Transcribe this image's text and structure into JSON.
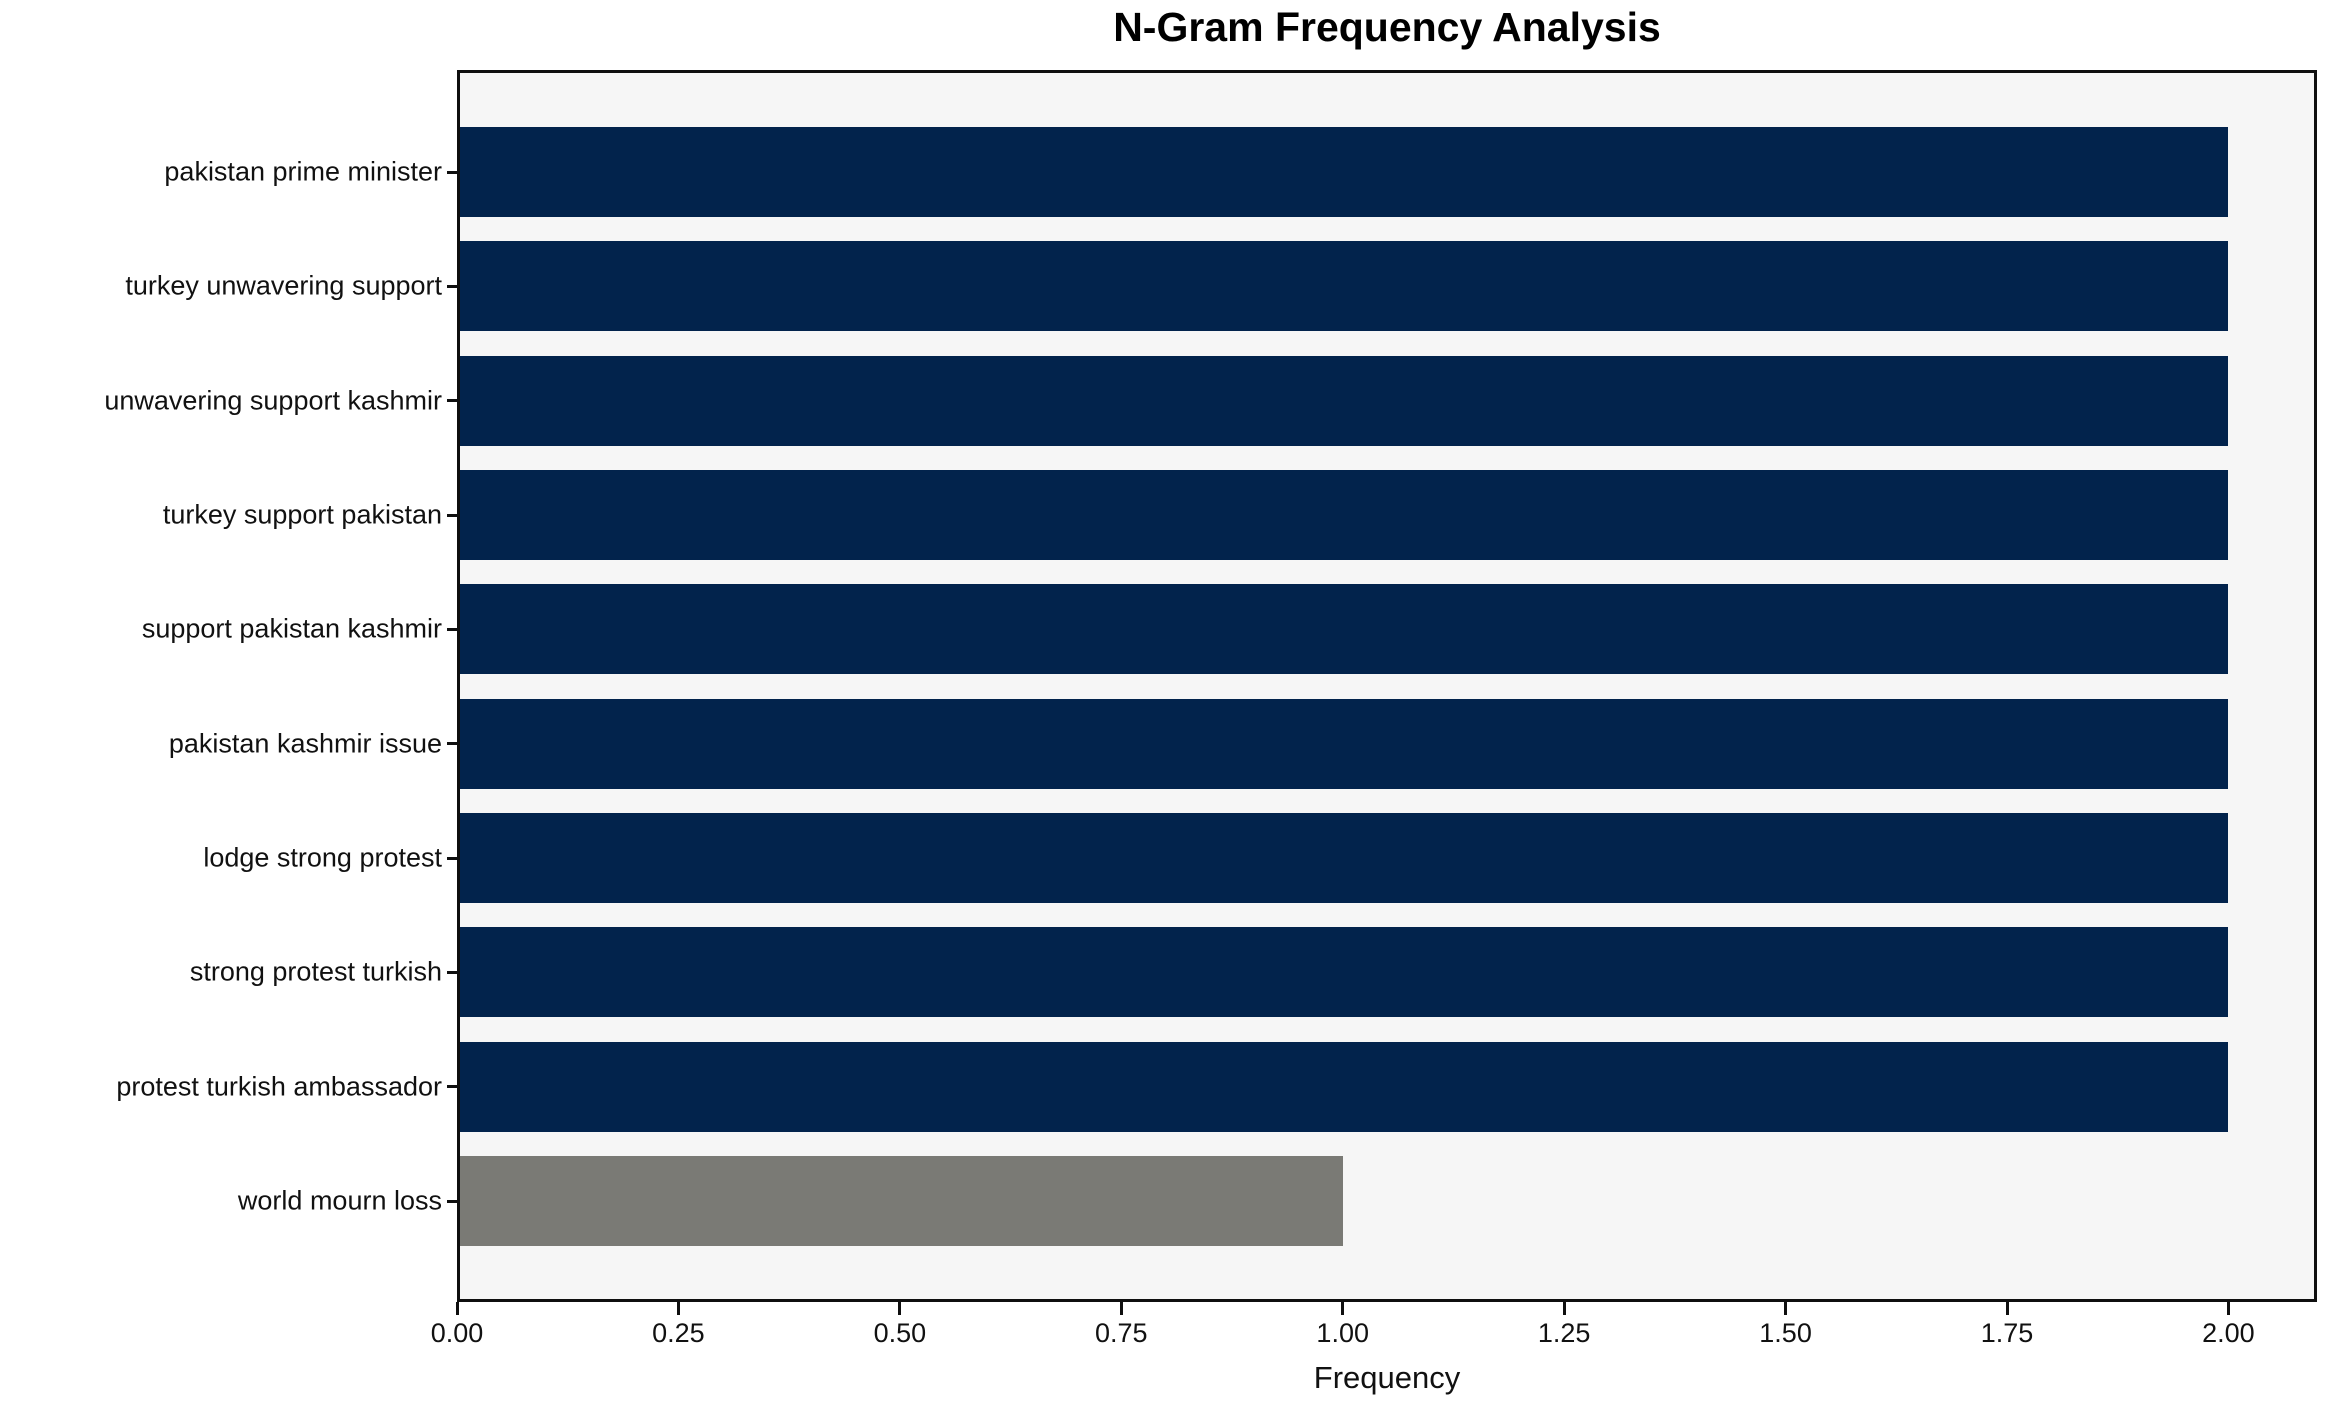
{
  "chart_data": {
    "type": "bar",
    "orientation": "horizontal",
    "title": "N-Gram Frequency Analysis",
    "xlabel": "Frequency",
    "ylabel": "",
    "categories": [
      "pakistan prime minister",
      "turkey unwavering support",
      "unwavering support kashmir",
      "turkey support pakistan",
      "support pakistan kashmir",
      "pakistan kashmir issue",
      "lodge strong protest",
      "strong protest turkish",
      "protest turkish ambassador",
      "world mourn loss"
    ],
    "values": [
      2,
      2,
      2,
      2,
      2,
      2,
      2,
      2,
      2,
      1
    ],
    "bar_colors": [
      "#02234C",
      "#02234C",
      "#02234C",
      "#02234C",
      "#02234C",
      "#02234C",
      "#02234C",
      "#02234C",
      "#02234C",
      "#7A7A75"
    ],
    "xlim": [
      0,
      2.1
    ],
    "x_tick_values": [
      0,
      0.25,
      0.5,
      0.75,
      1.0,
      1.25,
      1.5,
      1.75,
      2.0
    ],
    "x_tick_labels": [
      "0.00",
      "0.25",
      "0.50",
      "0.75",
      "1.00",
      "1.25",
      "1.50",
      "1.75",
      "2.00"
    ],
    "grid": false,
    "legend": null,
    "plot_background": "#F6F6F6",
    "spine_color": "#0F0F0F",
    "figure_background": "#FFFFFF"
  }
}
